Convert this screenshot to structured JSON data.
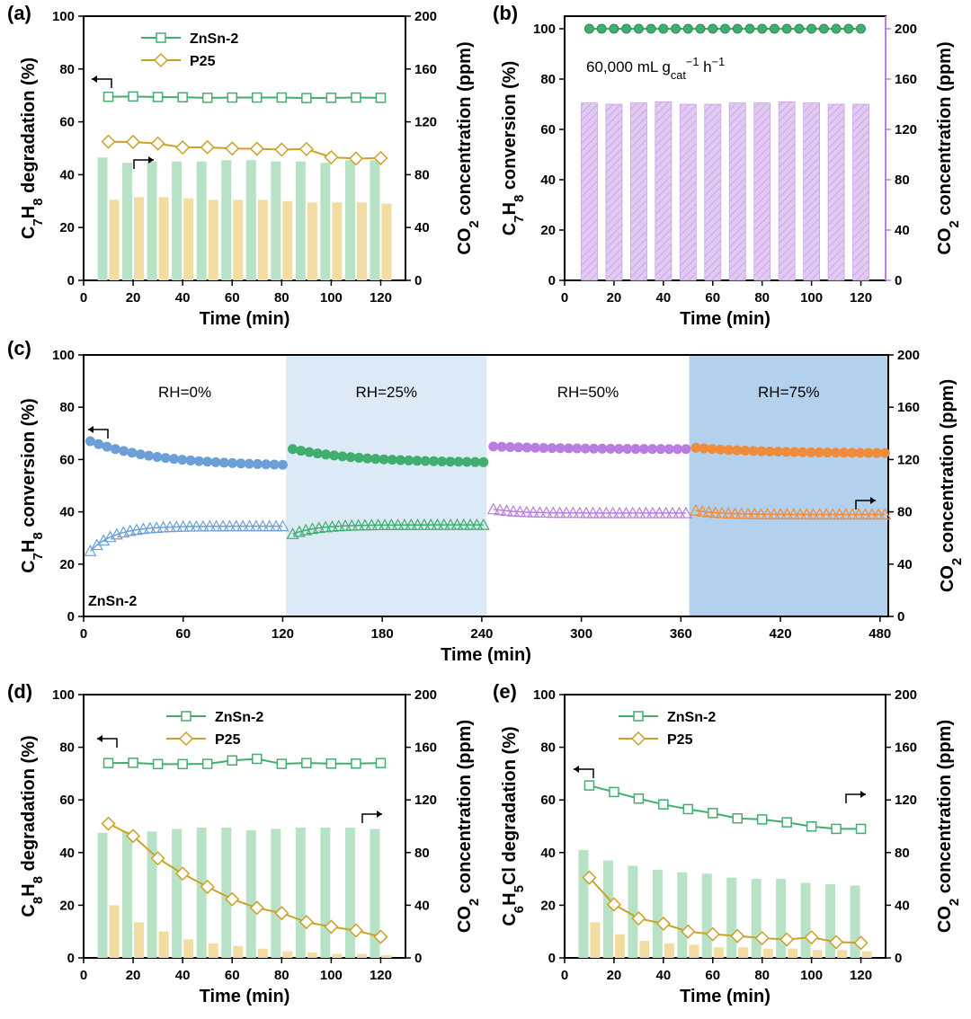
{
  "colors": {
    "green": "#3fae6e",
    "green_bar": "#b8e2c6",
    "gold": "#c9a227",
    "gold_bar": "#f3dca2",
    "purple_axis": "#c07ee0",
    "purple_bar": "#e2c9f3",
    "blue_pt": "#6c9fd6",
    "orange_pt": "#f08b3a",
    "purple_pt": "#b97de0",
    "shade_25": "#dce9f6",
    "shade_75": "#b3d0ec"
  },
  "chart_data": [
    {
      "panel": "(a)",
      "type": "bar+line",
      "xlabel": "Time (min)",
      "ylabel_left": "C7H8 degradation (%)",
      "ylabel_right": "CO2 concentration (ppm)",
      "xlim": [
        0,
        130
      ],
      "xticks": [
        0,
        20,
        40,
        60,
        80,
        100,
        120
      ],
      "ylim_left": [
        0,
        100
      ],
      "yticks_left": [
        0,
        20,
        40,
        60,
        80,
        100
      ],
      "ylim_right": [
        0,
        200
      ],
      "yticks_right": [
        0,
        40,
        80,
        120,
        160,
        200
      ],
      "x": [
        10,
        20,
        30,
        40,
        50,
        60,
        70,
        80,
        90,
        100,
        110,
        120
      ],
      "series": [
        {
          "name": "ZnSn-2",
          "kind": "line",
          "axis": "left",
          "values": [
            69.5,
            69.6,
            69.4,
            69.3,
            69.1,
            69.2,
            69.2,
            69.2,
            69.0,
            69.1,
            69.2,
            69.1
          ]
        },
        {
          "name": "P25",
          "kind": "line",
          "axis": "left",
          "values": [
            52.5,
            52.4,
            51.8,
            50.3,
            50.4,
            49.9,
            49.8,
            49.5,
            49.7,
            46.6,
            46.1,
            46.3
          ]
        },
        {
          "name": "ZnSn-2 CO2",
          "kind": "bar",
          "axis": "right",
          "values": [
            93,
            89,
            90,
            90,
            90,
            91,
            91,
            90,
            90,
            89,
            91,
            91
          ]
        },
        {
          "name": "P25 CO2",
          "kind": "bar",
          "axis": "right",
          "values": [
            61,
            63,
            63,
            62,
            61,
            61,
            61,
            60,
            59,
            59,
            59,
            58
          ]
        }
      ],
      "legend": [
        "ZnSn-2",
        "P25"
      ]
    },
    {
      "panel": "(b)",
      "type": "bar+line",
      "xlabel": "Time (min)",
      "ylabel_left": "C7H8 conversion (%)",
      "ylabel_right": "CO2 concentration (ppm)",
      "annotation": "60,000 mL g",
      "annotation_sub": "cat",
      "annotation_sup1": "−1",
      "annotation_mid": " h",
      "annotation_sup2": "−1",
      "xlim": [
        0,
        130
      ],
      "xticks": [
        0,
        20,
        40,
        60,
        80,
        100,
        120
      ],
      "ylim_left": [
        0,
        105
      ],
      "yticks_left": [
        0,
        20,
        40,
        60,
        80,
        100
      ],
      "ylim_right": [
        0,
        210
      ],
      "yticks_right": [
        0,
        40,
        80,
        120,
        160,
        200
      ],
      "x": [
        10,
        20,
        30,
        40,
        50,
        60,
        70,
        80,
        90,
        100,
        110,
        120
      ],
      "series": [
        {
          "name": "ZnSn-2 conversion",
          "kind": "line",
          "axis": "left",
          "values": [
            100,
            100,
            100,
            100,
            100,
            100,
            100,
            100,
            100,
            100,
            100,
            100
          ]
        },
        {
          "name": "ZnSn-2 CO2",
          "kind": "bar",
          "axis": "right",
          "values": [
            141,
            140,
            141,
            142,
            140,
            140,
            141,
            141,
            142,
            141,
            140,
            140
          ]
        }
      ]
    },
    {
      "panel": "(c)",
      "type": "scatter",
      "xlabel": "Time (min)",
      "ylabel_left": "C7H8 conversion (%)",
      "ylabel_right": "CO2 concentration (ppm)",
      "sample_label": "ZnSn-2",
      "xlim": [
        0,
        485
      ],
      "xticks": [
        0,
        60,
        120,
        180,
        240,
        300,
        360,
        420,
        480
      ],
      "ylim_left": [
        0,
        100
      ],
      "yticks_left": [
        0,
        20,
        40,
        60,
        80,
        100
      ],
      "ylim_right": [
        0,
        200
      ],
      "yticks_right": [
        0,
        40,
        80,
        120,
        160,
        200
      ],
      "regions": [
        {
          "label": "RH=0%",
          "start": 0,
          "end": 122,
          "shade": "none"
        },
        {
          "label": "RH=25%",
          "start": 122,
          "end": 243,
          "shade": "light"
        },
        {
          "label": "RH=50%",
          "start": 243,
          "end": 365,
          "shade": "none"
        },
        {
          "label": "RH=75%",
          "start": 365,
          "end": 485,
          "shade": "dark"
        }
      ],
      "conversion_segments": [
        {
          "start": 67,
          "end": 58,
          "color": "blue_pt"
        },
        {
          "start": 64,
          "end": 59,
          "color": "green"
        },
        {
          "start": 65,
          "end": 64,
          "color": "purple_pt"
        },
        {
          "start": 64.5,
          "end": 62.5,
          "color": "orange_pt"
        }
      ],
      "co2_segments": [
        {
          "start": 50,
          "plateau": 69,
          "color": "blue_pt"
        },
        {
          "start": 63,
          "plateau": 70,
          "color": "green"
        },
        {
          "start": 82,
          "plateau": 79,
          "color": "purple_pt"
        },
        {
          "start": 81,
          "plateau": 78,
          "color": "orange_pt"
        }
      ]
    },
    {
      "panel": "(d)",
      "type": "bar+line",
      "xlabel": "Time (min)",
      "ylabel_left": "C8H8 degradation (%)",
      "ylabel_right": "CO2 concentration (ppm)",
      "xlim": [
        0,
        130
      ],
      "xticks": [
        0,
        20,
        40,
        60,
        80,
        100,
        120
      ],
      "ylim_left": [
        0,
        100
      ],
      "yticks_left": [
        0,
        20,
        40,
        60,
        80,
        100
      ],
      "ylim_right": [
        0,
        200
      ],
      "yticks_right": [
        0,
        40,
        80,
        120,
        160,
        200
      ],
      "x": [
        10,
        20,
        30,
        40,
        50,
        60,
        70,
        80,
        90,
        100,
        110,
        120
      ],
      "series": [
        {
          "name": "ZnSn-2",
          "kind": "line",
          "axis": "left",
          "values": [
            74.0,
            74.1,
            73.6,
            73.6,
            73.7,
            75.0,
            75.6,
            73.7,
            74.0,
            73.8,
            73.8,
            74.0
          ]
        },
        {
          "name": "P25",
          "kind": "line",
          "axis": "left",
          "values": [
            51.0,
            46.3,
            37.8,
            32.0,
            27.0,
            22.3,
            19.0,
            17.0,
            13.6,
            11.8,
            10.4,
            8.0
          ]
        },
        {
          "name": "ZnSn-2 CO2",
          "kind": "bar",
          "axis": "right",
          "values": [
            95,
            96,
            96,
            98,
            99,
            99,
            97,
            98,
            99,
            99,
            99,
            98
          ]
        },
        {
          "name": "P25 CO2",
          "kind": "bar",
          "axis": "right",
          "values": [
            40,
            27,
            20,
            14,
            11,
            9,
            7,
            5,
            4,
            3,
            3,
            2
          ]
        }
      ],
      "legend": [
        "ZnSn-2",
        "P25"
      ]
    },
    {
      "panel": "(e)",
      "type": "bar+line",
      "xlabel": "Time (min)",
      "ylabel_left": "C6H5Cl degradation (%)",
      "ylabel_right": "CO2 concentration (ppm)",
      "xlim": [
        0,
        130
      ],
      "xticks": [
        0,
        20,
        40,
        60,
        80,
        100,
        120
      ],
      "ylim_left": [
        0,
        100
      ],
      "yticks_left": [
        0,
        20,
        40,
        60,
        80,
        100
      ],
      "ylim_right": [
        0,
        200
      ],
      "yticks_right": [
        0,
        40,
        80,
        120,
        160,
        200
      ],
      "x": [
        10,
        20,
        30,
        40,
        50,
        60,
        70,
        80,
        90,
        100,
        110,
        120
      ],
      "series": [
        {
          "name": "ZnSn-2",
          "kind": "line",
          "axis": "left",
          "values": [
            65.5,
            63.0,
            60.5,
            58.3,
            56.5,
            55.0,
            53.0,
            52.6,
            51.5,
            49.9,
            49.0,
            49.0
          ]
        },
        {
          "name": "P25",
          "kind": "line",
          "axis": "left",
          "values": [
            30.5,
            20.3,
            15.0,
            13.0,
            10.0,
            9.0,
            8.3,
            7.5,
            7.0,
            7.8,
            6.0,
            5.7
          ]
        },
        {
          "name": "ZnSn-2 CO2",
          "kind": "bar",
          "axis": "right",
          "values": [
            82,
            74,
            70,
            67,
            65,
            64,
            61,
            60,
            60,
            57,
            56,
            55
          ]
        },
        {
          "name": "P25 CO2",
          "kind": "bar",
          "axis": "right",
          "values": [
            27,
            18,
            13,
            11,
            10,
            8,
            8,
            7,
            7,
            6,
            6,
            5
          ]
        }
      ],
      "legend": [
        "ZnSn-2",
        "P25"
      ]
    }
  ]
}
